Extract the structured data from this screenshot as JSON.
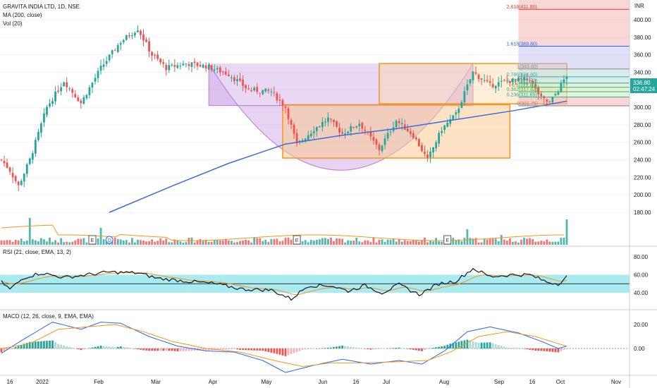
{
  "header": {
    "title": "GRAVITA INDIA LTD, 1D, NSE",
    "ma_label": "MA (200, close)",
    "vol_label": "Vol (20)",
    "rsi_label": "RSI (21, close, EMA, 13, 2)",
    "macd_label": "MACD (12, 26, close, 9, EMA, EMA)"
  },
  "colors": {
    "up": "#26a69a",
    "down": "#ef5350",
    "ma": "#3a6fd8",
    "rsi_band": "#3fd3e0",
    "fib_line": "#2962ff",
    "box_orange": "#f7941d",
    "cup_purple": "#cfa8e6",
    "macd_line": "#2962ff",
    "signal_line": "#f7931a",
    "last_price_bg": "#26a69a"
  },
  "price_axis": {
    "currency": "INR",
    "ticks": [
      "400.00",
      "380.00",
      "360.00",
      "340.00",
      "320.00",
      "300.00",
      "280.00",
      "260.00",
      "240.00",
      "220.00",
      "200.00",
      "180.00"
    ]
  },
  "last_price": {
    "value": "336.80",
    "countdown": "02:47:24"
  },
  "fib_labels": [
    {
      "text": "2.618(411.90)",
      "value": 411.9
    },
    {
      "text": "1.618(369.80)",
      "value": 369.8
    },
    {
      "text": "1(343.80)",
      "value": 343.8
    },
    {
      "text": "0.786(334.80)",
      "value": 334.8
    },
    {
      "text": "0.618(327.72)",
      "value": 327.72
    },
    {
      "text": "0.5(322.80)",
      "value": 322.8
    },
    {
      "text": "0.382(317.82)",
      "value": 317.82
    },
    {
      "text": "0.236(311.65)",
      "value": 311.65
    },
    {
      "text": "0(301.75)",
      "value": 301.75
    }
  ],
  "time_axis": [
    "16",
    "2022",
    "Feb",
    "Mar",
    "Apr",
    "May",
    "Jun",
    "16",
    "Jul",
    "Aug",
    "Sep",
    "16",
    "Oct",
    "Nov"
  ],
  "event_markers": [
    "E",
    "D",
    "E",
    "E"
  ],
  "rsi_axis": [
    "80.00",
    "60.00",
    "40.00"
  ],
  "macd_axis": [
    "20.00",
    "0.00"
  ],
  "chart_data": [
    {
      "type": "candlestick",
      "title": "GRAVITA INDIA LTD, 1D, NSE",
      "ylim": [
        170,
        420
      ],
      "anchors": [
        {
          "d": 0,
          "p": 240
        },
        {
          "d": 3,
          "p": 228
        },
        {
          "d": 6,
          "p": 210
        },
        {
          "d": 10,
          "p": 240
        },
        {
          "d": 16,
          "p": 300
        },
        {
          "d": 22,
          "p": 330
        },
        {
          "d": 28,
          "p": 305
        },
        {
          "d": 35,
          "p": 345
        },
        {
          "d": 42,
          "p": 375
        },
        {
          "d": 48,
          "p": 390
        },
        {
          "d": 53,
          "p": 360
        },
        {
          "d": 58,
          "p": 345
        },
        {
          "d": 65,
          "p": 350
        },
        {
          "d": 72,
          "p": 347
        },
        {
          "d": 80,
          "p": 338
        },
        {
          "d": 87,
          "p": 320
        },
        {
          "d": 95,
          "p": 318
        },
        {
          "d": 100,
          "p": 300
        },
        {
          "d": 104,
          "p": 257
        },
        {
          "d": 110,
          "p": 275
        },
        {
          "d": 115,
          "p": 287
        },
        {
          "d": 120,
          "p": 270
        },
        {
          "d": 126,
          "p": 282
        },
        {
          "d": 133,
          "p": 252
        },
        {
          "d": 139,
          "p": 285
        },
        {
          "d": 145,
          "p": 268
        },
        {
          "d": 150,
          "p": 240
        },
        {
          "d": 155,
          "p": 275
        },
        {
          "d": 160,
          "p": 292
        },
        {
          "d": 166,
          "p": 340
        },
        {
          "d": 172,
          "p": 325
        },
        {
          "d": 178,
          "p": 330
        },
        {
          "d": 186,
          "p": 332
        },
        {
          "d": 190,
          "p": 310
        },
        {
          "d": 193,
          "p": 305
        },
        {
          "d": 196,
          "p": 320
        },
        {
          "d": 199,
          "p": 336.8
        }
      ],
      "ma200": [
        {
          "d": 38,
          "p": 180
        },
        {
          "d": 60,
          "p": 210
        },
        {
          "d": 80,
          "p": 236
        },
        {
          "d": 100,
          "p": 258
        },
        {
          "d": 120,
          "p": 268
        },
        {
          "d": 140,
          "p": 276
        },
        {
          "d": 160,
          "p": 286
        },
        {
          "d": 180,
          "p": 296
        },
        {
          "d": 199,
          "p": 307
        }
      ],
      "volume_spikes": [
        {
          "d": 10,
          "v": 0.95
        },
        {
          "d": 35,
          "v": 0.6
        },
        {
          "d": 164,
          "v": 0.55
        },
        {
          "d": 176,
          "v": 0.35
        },
        {
          "d": 199,
          "v": 0.9
        }
      ]
    },
    {
      "type": "line",
      "title": "RSI (21, close, EMA, 13, 2)",
      "ylim": [
        25,
        85
      ],
      "band": [
        40,
        60
      ],
      "midline": 50,
      "anchors": [
        {
          "d": 0,
          "p": 52
        },
        {
          "d": 3,
          "p": 44
        },
        {
          "d": 8,
          "p": 57
        },
        {
          "d": 14,
          "p": 62
        },
        {
          "d": 22,
          "p": 57
        },
        {
          "d": 30,
          "p": 60
        },
        {
          "d": 38,
          "p": 63
        },
        {
          "d": 48,
          "p": 62
        },
        {
          "d": 55,
          "p": 56
        },
        {
          "d": 65,
          "p": 53
        },
        {
          "d": 75,
          "p": 50
        },
        {
          "d": 85,
          "p": 44
        },
        {
          "d": 95,
          "p": 43
        },
        {
          "d": 102,
          "p": 33
        },
        {
          "d": 108,
          "p": 48
        },
        {
          "d": 116,
          "p": 48
        },
        {
          "d": 122,
          "p": 42
        },
        {
          "d": 128,
          "p": 48
        },
        {
          "d": 134,
          "p": 40
        },
        {
          "d": 140,
          "p": 49
        },
        {
          "d": 147,
          "p": 38
        },
        {
          "d": 154,
          "p": 50
        },
        {
          "d": 160,
          "p": 53
        },
        {
          "d": 166,
          "p": 67
        },
        {
          "d": 172,
          "p": 58
        },
        {
          "d": 180,
          "p": 60
        },
        {
          "d": 186,
          "p": 60
        },
        {
          "d": 192,
          "p": 52
        },
        {
          "d": 196,
          "p": 50
        },
        {
          "d": 199,
          "p": 58
        }
      ]
    },
    {
      "type": "bar",
      "title": "MACD (12, 26, close, 9, EMA, EMA)",
      "ylim": [
        -28,
        28
      ],
      "macd_anchors": [
        {
          "d": 0,
          "p": -4
        },
        {
          "d": 8,
          "p": 8
        },
        {
          "d": 18,
          "p": 22
        },
        {
          "d": 28,
          "p": 16
        },
        {
          "d": 35,
          "p": 22
        },
        {
          "d": 42,
          "p": 21
        },
        {
          "d": 52,
          "p": 10
        },
        {
          "d": 62,
          "p": 2
        },
        {
          "d": 72,
          "p": -2
        },
        {
          "d": 82,
          "p": -3
        },
        {
          "d": 92,
          "p": -10
        },
        {
          "d": 100,
          "p": -20
        },
        {
          "d": 110,
          "p": -14
        },
        {
          "d": 120,
          "p": -9
        },
        {
          "d": 130,
          "p": -13
        },
        {
          "d": 140,
          "p": -10
        },
        {
          "d": 148,
          "p": -13
        },
        {
          "d": 156,
          "p": -2
        },
        {
          "d": 164,
          "p": 14
        },
        {
          "d": 172,
          "p": 18
        },
        {
          "d": 182,
          "p": 13
        },
        {
          "d": 190,
          "p": 6
        },
        {
          "d": 196,
          "p": 0
        },
        {
          "d": 199,
          "p": 2
        }
      ],
      "signal_anchors": [
        {
          "d": 0,
          "p": 0
        },
        {
          "d": 10,
          "p": 4
        },
        {
          "d": 20,
          "p": 16
        },
        {
          "d": 30,
          "p": 18
        },
        {
          "d": 40,
          "p": 20
        },
        {
          "d": 50,
          "p": 14
        },
        {
          "d": 60,
          "p": 6
        },
        {
          "d": 72,
          "p": 0
        },
        {
          "d": 84,
          "p": -3
        },
        {
          "d": 96,
          "p": -10
        },
        {
          "d": 106,
          "p": -15
        },
        {
          "d": 116,
          "p": -12
        },
        {
          "d": 128,
          "p": -12
        },
        {
          "d": 140,
          "p": -11
        },
        {
          "d": 150,
          "p": -10
        },
        {
          "d": 158,
          "p": -3
        },
        {
          "d": 168,
          "p": 10
        },
        {
          "d": 178,
          "p": 14
        },
        {
          "d": 188,
          "p": 10
        },
        {
          "d": 196,
          "p": 4
        },
        {
          "d": 199,
          "p": 2
        }
      ]
    }
  ]
}
